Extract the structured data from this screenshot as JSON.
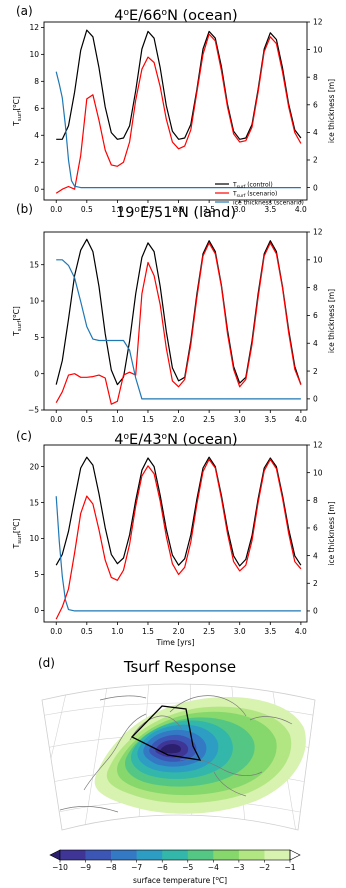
{
  "chart_data": [
    {
      "type": "line",
      "panel_label": "(a)",
      "title_pre": "4",
      "title_sup": "o",
      "title_mid": "E/66",
      "title_sup2": "o",
      "title_post": "N (ocean)",
      "xlabel": "",
      "ylabel_main": "T",
      "ylabel_sub": "surf",
      "ylabel_unit": "[",
      "ylabel_unit_sup": "o",
      "ylabel_unit_end": "C]",
      "y2label": "ice thickness [m]",
      "xlim": [
        -0.2,
        4.1
      ],
      "ylim": [
        -0.8,
        12.4
      ],
      "y2lim": [
        -0.9,
        12.0
      ],
      "xticks": [
        "0.0",
        "0.5",
        "1.0",
        "1.5",
        "2.0",
        "2.5",
        "3.0",
        "3.5",
        "4.0"
      ],
      "xtick_values": [
        0,
        0.5,
        1,
        1.5,
        2,
        2.5,
        3,
        3.5,
        4
      ],
      "yticks": [
        0,
        2,
        4,
        6,
        8,
        10,
        12
      ],
      "y2ticks": [
        0,
        2,
        4,
        6,
        8,
        10,
        12
      ],
      "legend": [
        {
          "main": "T",
          "sub": "surf",
          "rest": " (control)"
        },
        {
          "main": "T",
          "sub": "surf",
          "rest": " (scenario)"
        },
        {
          "main": "",
          "sub": "",
          "rest": "ice thickness (scenario)"
        }
      ],
      "series": [
        {
          "axis": "left",
          "color": "#000000",
          "x": [
            0,
            0.1,
            0.2,
            0.3,
            0.4,
            0.5,
            0.6,
            0.7,
            0.8,
            0.9,
            1.0,
            1.1,
            1.2,
            1.3,
            1.4,
            1.5,
            1.6,
            1.7,
            1.8,
            1.9,
            2.0,
            2.1,
            2.2,
            2.3,
            2.4,
            2.5,
            2.6,
            2.7,
            2.8,
            2.9,
            3.0,
            3.1,
            3.2,
            3.3,
            3.4,
            3.5,
            3.6,
            3.7,
            3.8,
            3.9,
            4.0
          ],
          "y": [
            3.7,
            3.7,
            4.7,
            7.2,
            10.3,
            11.8,
            11.3,
            9.0,
            6.1,
            4.2,
            3.7,
            3.8,
            4.7,
            7.3,
            10.4,
            11.7,
            11.2,
            9.0,
            6.2,
            4.3,
            3.7,
            3.8,
            4.8,
            7.4,
            10.4,
            11.7,
            11.2,
            9.1,
            6.3,
            4.3,
            3.7,
            3.8,
            4.8,
            7.4,
            10.4,
            11.6,
            11.1,
            9.0,
            6.3,
            4.4,
            3.8
          ]
        },
        {
          "axis": "left",
          "color": "#ff0000",
          "x": [
            0,
            0.1,
            0.2,
            0.3,
            0.4,
            0.5,
            0.6,
            0.7,
            0.8,
            0.9,
            1.0,
            1.1,
            1.2,
            1.3,
            1.4,
            1.5,
            1.6,
            1.7,
            1.8,
            1.9,
            2.0,
            2.1,
            2.2,
            2.3,
            2.4,
            2.5,
            2.6,
            2.7,
            2.8,
            2.9,
            3.0,
            3.1,
            3.2,
            3.3,
            3.4,
            3.5,
            3.6,
            3.7,
            3.8,
            3.9,
            4.0
          ],
          "y": [
            -0.3,
            0.0,
            0.2,
            0.0,
            2.5,
            6.7,
            7.0,
            5.1,
            2.9,
            1.8,
            1.7,
            2.0,
            3.5,
            6.6,
            8.9,
            9.8,
            9.4,
            7.6,
            5.2,
            3.5,
            3.0,
            3.2,
            4.4,
            7.2,
            10.0,
            11.5,
            11.0,
            8.8,
            6.1,
            4.1,
            3.5,
            3.6,
            4.6,
            7.2,
            10.2,
            11.3,
            10.8,
            8.7,
            6.1,
            4.2,
            3.4
          ]
        },
        {
          "axis": "right",
          "color": "#1f77b4",
          "x": [
            0,
            0.05,
            0.1,
            0.15,
            0.2,
            0.25,
            0.3,
            0.4,
            0.6,
            1.0,
            1.5,
            2.0,
            2.5,
            3.0,
            3.5,
            4.0
          ],
          "y": [
            8.4,
            7.5,
            6.5,
            4.5,
            2.0,
            0.5,
            0.1,
            0.0,
            0.0,
            0.0,
            0.0,
            0.0,
            0.0,
            0.0,
            0.0,
            0.0
          ]
        }
      ]
    },
    {
      "type": "line",
      "panel_label": "(b)",
      "title_pre": "19",
      "title_sup": "o",
      "title_mid": "E/51",
      "title_sup2": "o",
      "title_post": "N (land)",
      "xlabel": "",
      "ylabel_main": "T",
      "ylabel_sub": "surf",
      "ylabel_unit": "[",
      "ylabel_unit_sup": "o",
      "ylabel_unit_end": "C]",
      "y2label": "ice thickness [m]",
      "xlim": [
        -0.2,
        4.1
      ],
      "ylim": [
        -5.0,
        19.5
      ],
      "y2lim": [
        -0.8,
        12.0
      ],
      "xticks": [
        "0.0",
        "0.5",
        "1.0",
        "1.5",
        "2.0",
        "2.5",
        "3.0",
        "3.5",
        "4.0"
      ],
      "xtick_values": [
        0,
        0.5,
        1,
        1.5,
        2,
        2.5,
        3,
        3.5,
        4
      ],
      "yticks": [
        -5,
        0,
        5,
        10,
        15
      ],
      "y2ticks": [
        0,
        2,
        4,
        6,
        8,
        10,
        12
      ],
      "legend": [],
      "series": [
        {
          "axis": "left",
          "color": "#000000",
          "x": [
            0,
            0.1,
            0.2,
            0.3,
            0.4,
            0.5,
            0.6,
            0.7,
            0.8,
            0.9,
            1.0,
            1.1,
            1.2,
            1.3,
            1.4,
            1.5,
            1.6,
            1.7,
            1.8,
            1.9,
            2.0,
            2.1,
            2.2,
            2.3,
            2.4,
            2.5,
            2.6,
            2.7,
            2.8,
            2.9,
            3.0,
            3.1,
            3.2,
            3.3,
            3.4,
            3.5,
            3.6,
            3.7,
            3.8,
            3.9,
            4.0
          ],
          "y": [
            -1.5,
            1.8,
            7.5,
            13.5,
            17.0,
            18.5,
            16.8,
            12.0,
            5.5,
            0.5,
            -1.5,
            -0.5,
            4.5,
            11.0,
            16.0,
            18.0,
            16.8,
            12.0,
            5.8,
            0.8,
            -1.0,
            -0.5,
            4.5,
            11.0,
            16.5,
            18.3,
            16.8,
            12.2,
            6.0,
            1.0,
            -1.3,
            -0.5,
            4.5,
            11.0,
            16.5,
            18.3,
            16.8,
            12.0,
            6.0,
            1.0,
            -1.5
          ]
        },
        {
          "axis": "left",
          "color": "#ff0000",
          "x": [
            0,
            0.1,
            0.2,
            0.3,
            0.4,
            0.5,
            0.6,
            0.7,
            0.8,
            0.9,
            1.0,
            1.1,
            1.2,
            1.3,
            1.4,
            1.5,
            1.6,
            1.7,
            1.8,
            1.9,
            2.0,
            2.1,
            2.2,
            2.3,
            2.4,
            2.5,
            2.6,
            2.7,
            2.8,
            2.9,
            3.0,
            3.1,
            3.2,
            3.3,
            3.4,
            3.5,
            3.6,
            3.7,
            3.8,
            3.9,
            4.0
          ],
          "y": [
            -4.0,
            -2.5,
            -0.2,
            0.0,
            -0.5,
            -0.5,
            -0.4,
            -0.2,
            -0.6,
            -4.2,
            -3.8,
            -0.2,
            0.2,
            -0.2,
            11.0,
            15.3,
            13.5,
            9.5,
            3.5,
            -1.0,
            -1.8,
            -0.8,
            4.0,
            10.5,
            16.2,
            18.0,
            16.5,
            12.0,
            5.5,
            0.6,
            -1.8,
            -0.8,
            4.0,
            10.5,
            16.2,
            18.0,
            16.5,
            11.8,
            5.6,
            0.6,
            -1.5
          ]
        },
        {
          "axis": "right",
          "color": "#1f77b4",
          "x": [
            0,
            0.1,
            0.2,
            0.3,
            0.4,
            0.5,
            0.6,
            0.7,
            0.8,
            0.9,
            1.0,
            1.1,
            1.2,
            1.3,
            1.4,
            1.5,
            2.0,
            2.5,
            3.0,
            3.5,
            4.0
          ],
          "y": [
            10.0,
            10.0,
            9.6,
            8.7,
            7.0,
            5.2,
            4.3,
            4.2,
            4.2,
            4.2,
            4.2,
            4.2,
            3.5,
            1.5,
            0.0,
            0.0,
            0.0,
            0.0,
            0.0,
            0.0,
            0.0
          ]
        }
      ]
    },
    {
      "type": "line",
      "panel_label": "(c)",
      "title_pre": "4",
      "title_sup": "o",
      "title_mid": "E/43",
      "title_sup2": "o",
      "title_post": "N (ocean)",
      "xlabel": "Time [yrs]",
      "ylabel_main": "T",
      "ylabel_sub": "surf",
      "ylabel_unit": "[",
      "ylabel_unit_sup": "o",
      "ylabel_unit_end": "C]",
      "y2label": "ice thickness [m]",
      "xlim": [
        -0.2,
        4.1
      ],
      "ylim": [
        -1.6,
        23.0
      ],
      "y2lim": [
        -0.8,
        12.0
      ],
      "xticks": [
        "0.0",
        "0.5",
        "1.0",
        "1.5",
        "2.0",
        "2.5",
        "3.0",
        "3.5",
        "4.0"
      ],
      "xtick_values": [
        0,
        0.5,
        1,
        1.5,
        2,
        2.5,
        3,
        3.5,
        4
      ],
      "yticks": [
        0,
        5,
        10,
        15,
        20
      ],
      "y2ticks": [
        0,
        2,
        4,
        6,
        8,
        10,
        12
      ],
      "legend": [],
      "series": [
        {
          "axis": "left",
          "color": "#000000",
          "x": [
            0,
            0.1,
            0.2,
            0.3,
            0.4,
            0.5,
            0.6,
            0.7,
            0.8,
            0.9,
            1.0,
            1.1,
            1.2,
            1.3,
            1.4,
            1.5,
            1.6,
            1.7,
            1.8,
            1.9,
            2.0,
            2.1,
            2.2,
            2.3,
            2.4,
            2.5,
            2.6,
            2.7,
            2.8,
            2.9,
            3.0,
            3.1,
            3.2,
            3.3,
            3.4,
            3.5,
            3.6,
            3.7,
            3.8,
            3.9,
            4.0
          ],
          "y": [
            6.3,
            7.8,
            11.0,
            15.5,
            19.8,
            21.3,
            20.2,
            16.2,
            11.5,
            7.8,
            6.5,
            7.3,
            10.5,
            15.3,
            19.5,
            21.2,
            20.0,
            16.0,
            11.3,
            7.7,
            6.3,
            7.2,
            10.5,
            15.5,
            19.8,
            21.3,
            20.0,
            16.0,
            11.3,
            7.6,
            6.2,
            7.1,
            10.4,
            15.5,
            19.8,
            21.2,
            20.0,
            16.0,
            11.3,
            7.6,
            6.3
          ]
        },
        {
          "axis": "left",
          "color": "#ff0000",
          "x": [
            0,
            0.1,
            0.2,
            0.3,
            0.4,
            0.5,
            0.6,
            0.7,
            0.8,
            0.9,
            1.0,
            1.1,
            1.2,
            1.3,
            1.4,
            1.5,
            1.6,
            1.7,
            1.8,
            1.9,
            2.0,
            2.1,
            2.2,
            2.3,
            2.4,
            2.5,
            2.6,
            2.7,
            2.8,
            2.9,
            3.0,
            3.1,
            3.2,
            3.3,
            3.4,
            3.5,
            3.6,
            3.7,
            3.8,
            3.9,
            4.0
          ],
          "y": [
            -1.2,
            0.5,
            3.0,
            8.0,
            13.5,
            15.9,
            14.8,
            11.2,
            7.0,
            4.6,
            4.2,
            5.6,
            9.2,
            14.5,
            18.7,
            20.1,
            19.0,
            15.2,
            10.3,
            6.5,
            5.0,
            6.0,
            9.5,
            14.8,
            19.3,
            21.0,
            19.8,
            15.6,
            10.7,
            6.8,
            5.5,
            6.3,
            9.7,
            15.0,
            19.4,
            21.0,
            19.7,
            15.6,
            10.7,
            6.8,
            5.8
          ]
        },
        {
          "axis": "right",
          "color": "#1f77b4",
          "x": [
            0,
            0.05,
            0.1,
            0.15,
            0.2,
            0.3,
            0.5,
            1.0,
            1.5,
            2.0,
            2.5,
            3.0,
            3.5,
            4.0
          ],
          "y": [
            8.3,
            5.0,
            2.5,
            0.8,
            0.1,
            0.0,
            0.0,
            0.0,
            0.0,
            0.0,
            0.0,
            0.0,
            0.0,
            0.0
          ]
        }
      ]
    },
    {
      "type": "heatmap",
      "panel_label": "(d)",
      "title": "Tsurf Response",
      "colorbar_ticks": [
        "−10",
        "−9",
        "−8",
        "−7",
        "−6",
        "−5",
        "−4",
        "−3",
        "−2",
        "−1"
      ],
      "colorbar_values": [
        -10,
        -9,
        -8,
        -7,
        -6,
        -5,
        -4,
        -3,
        -2,
        -1
      ],
      "colorbar_label_pre": "surface temperature [",
      "colorbar_label_sup": "o",
      "colorbar_label_post": "C]",
      "colors": [
        "#2c1f6e",
        "#3f3596",
        "#3b56b5",
        "#3479c4",
        "#2d9dc4",
        "#33b7aa",
        "#55c785",
        "#86d86c",
        "#b2e683",
        "#d8f2b0"
      ]
    }
  ]
}
